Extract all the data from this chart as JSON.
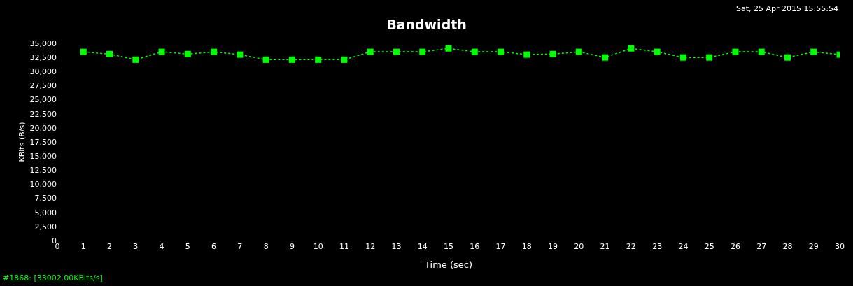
{
  "chart_data": {
    "type": "line",
    "title": "Bandwidth",
    "xlabel": "Time (sec)",
    "ylabel": "KBits (B/s)",
    "annotations": [
      "Sat, 25 Apr 2015 15:55:54",
      "#1868: [33002.00KBits/s]"
    ],
    "x": [
      1,
      2,
      3,
      4,
      5,
      6,
      7,
      8,
      9,
      10,
      11,
      12,
      13,
      14,
      15,
      16,
      17,
      18,
      19,
      20,
      21,
      22,
      23,
      24,
      25,
      26,
      27,
      28,
      29,
      30
    ],
    "series": [
      {
        "color": "#00ff00",
        "values": [
          33500,
          33100,
          32100,
          33500,
          33100,
          33500,
          33000,
          32100,
          32100,
          32100,
          32100,
          33500,
          33500,
          33500,
          34100,
          33500,
          33500,
          33000,
          33100,
          33500,
          32500,
          34100,
          33500,
          32500,
          32500,
          33500,
          33500,
          32500,
          33500,
          33000
        ]
      }
    ],
    "xlim": [
      0,
      30
    ],
    "xticks": [
      0,
      1,
      2,
      3,
      4,
      5,
      6,
      7,
      8,
      9,
      10,
      11,
      12,
      13,
      14,
      15,
      16,
      17,
      18,
      19,
      20,
      21,
      22,
      23,
      24,
      25,
      26,
      27,
      28,
      29,
      30
    ],
    "ylim": [
      0,
      35000
    ],
    "yticks": [
      {
        "value": 0,
        "label": "0"
      },
      {
        "value": 2500,
        "label": "2,500"
      },
      {
        "value": 5000,
        "label": "5,000"
      },
      {
        "value": 7500,
        "label": "7,500"
      },
      {
        "value": 10000,
        "label": "10,000"
      },
      {
        "value": 12500,
        "label": "12,500"
      },
      {
        "value": 15000,
        "label": "15,000"
      },
      {
        "value": 17500,
        "label": "17,500"
      },
      {
        "value": 20000,
        "label": "20,000"
      },
      {
        "value": 22500,
        "label": "22,500"
      },
      {
        "value": 25000,
        "label": "25,000"
      },
      {
        "value": 27500,
        "label": "27,500"
      },
      {
        "value": 30000,
        "label": "30,000"
      },
      {
        "value": 32500,
        "label": "32,500"
      },
      {
        "value": 35000,
        "label": "35,000"
      }
    ],
    "grid": false,
    "marker": "square",
    "line_style": "dotted"
  }
}
